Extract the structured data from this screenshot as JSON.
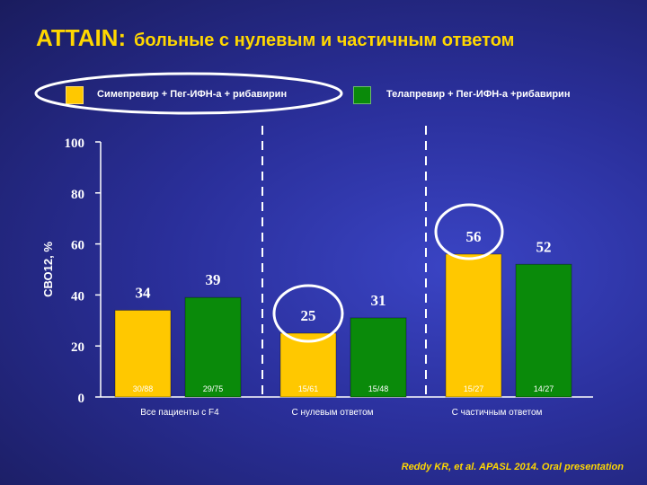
{
  "title": {
    "main": "ATTAIN:",
    "sub": "больные с нулевым и частичным ответом"
  },
  "legend": [
    {
      "label": "Симепревир + Пег-ИФН-a + рибавирин",
      "color": "#ffc800"
    },
    {
      "label": "Телапревир + Пег-ИФН-a +рибавирин",
      "color": "#0a8a0a"
    }
  ],
  "citation": "Reddy KR, et al. APASL 2014. Oral presentation",
  "colors": {
    "accent_yellow": "#ffd700",
    "ellipse_white": "#ffffff"
  },
  "chart_data": {
    "type": "bar",
    "ylabel": "СВО12, %",
    "xlabel": "",
    "ylim": [
      0,
      100
    ],
    "yticks": [
      0,
      20,
      40,
      60,
      80,
      100
    ],
    "categories": [
      "Все пациенты с F4",
      "С нулевым ответом",
      "С частичным ответом"
    ],
    "series": [
      {
        "name": "Симепревир + Пег-ИФН-a + рибавирин",
        "color": "#ffc800",
        "values": [
          34,
          25,
          56
        ],
        "counts": [
          "30/88",
          "15/61",
          "15/27"
        ]
      },
      {
        "name": "Телапревир + Пег-ИФН-a +рибавирин",
        "color": "#0a8a0a",
        "values": [
          39,
          31,
          52
        ],
        "counts": [
          "29/75",
          "15/48",
          "14/27"
        ]
      }
    ],
    "grid": false,
    "legend_position": "top",
    "highlighted": [
      "legend-0",
      "bar-1-0",
      "bar-2-0"
    ]
  }
}
